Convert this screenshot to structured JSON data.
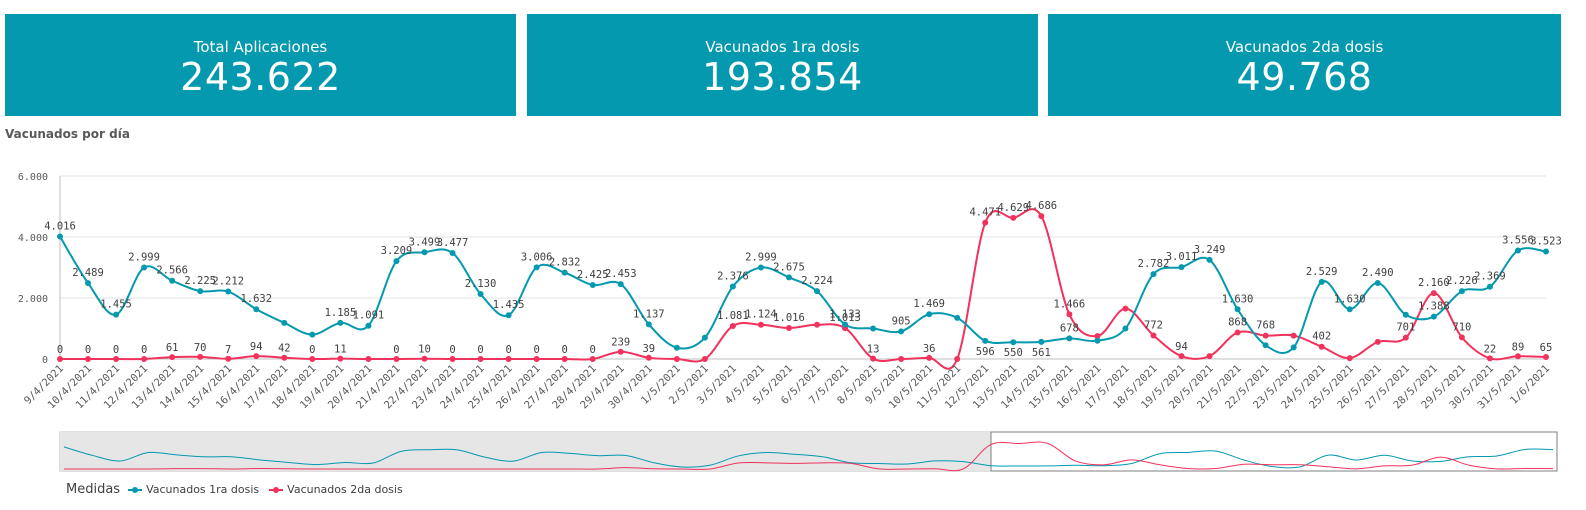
{
  "kpis": [
    {
      "label": "Total Aplicaciones",
      "value": "243.622"
    },
    {
      "label": "Vacunados 1ra dosis",
      "value": "193.854"
    },
    {
      "label": "Vacunados 2da dosis",
      "value": "49.768"
    }
  ],
  "chart_title": "Vacunados por día",
  "legend": {
    "title": "Medidas"
  },
  "colors": {
    "kpi_bg": "#0499ae",
    "series1": "#0499ae",
    "series2": "#f0325c"
  },
  "chart_data": {
    "type": "line",
    "title": "Vacunados por día",
    "ylim": [
      0,
      6000
    ],
    "yticks": [
      0,
      2000,
      4000,
      6000
    ],
    "ytick_labels": [
      "0",
      "2.000",
      "4.000",
      "6.000"
    ],
    "grid": true,
    "legend_position": "bottom-left",
    "x": [
      "9/4/2021",
      "10/4/2021",
      "11/4/2021",
      "12/4/2021",
      "13/4/2021",
      "14/4/2021",
      "15/4/2021",
      "16/4/2021",
      "17/4/2021",
      "18/4/2021",
      "19/4/2021",
      "20/4/2021",
      "21/4/2021",
      "22/4/2021",
      "23/4/2021",
      "24/4/2021",
      "25/4/2021",
      "26/4/2021",
      "27/4/2021",
      "28/4/2021",
      "29/4/2021",
      "30/4/2021",
      "1/5/2021",
      "2/5/2021",
      "3/5/2021",
      "4/5/2021",
      "5/5/2021",
      "6/5/2021",
      "7/5/2021",
      "8/5/2021",
      "9/5/2021",
      "10/5/2021",
      "11/5/2021",
      "12/5/2021",
      "13/5/2021",
      "14/5/2021",
      "15/5/2021",
      "16/5/2021",
      "17/5/2021",
      "18/5/2021",
      "19/5/2021",
      "20/5/2021",
      "21/5/2021",
      "22/5/2021",
      "23/5/2021",
      "24/5/2021",
      "25/5/2021",
      "26/5/2021",
      "27/5/2021",
      "28/5/2021",
      "29/5/2021",
      "30/5/2021",
      "31/5/2021",
      "1/6/2021"
    ],
    "series": [
      {
        "name": "Vacunados 1ra dosis",
        "values": [
          4016,
          2489,
          1455,
          2999,
          2566,
          2225,
          2212,
          1632,
          1185,
          800,
          1185,
          1091,
          3209,
          3499,
          3477,
          2130,
          1435,
          3006,
          2832,
          2425,
          2453,
          1137,
          370,
          700,
          2376,
          2999,
          2675,
          2224,
          1133,
          1000,
          905,
          1469,
          1350,
          596,
          550,
          561,
          678,
          600,
          1000,
          2782,
          3011,
          3249,
          1630,
          450,
          380,
          2529,
          1630,
          2490,
          1450,
          1388,
          2226,
          2369,
          3556,
          3523
        ],
        "labels": [
          "4.016",
          "2.489",
          "1.455",
          "2.999",
          "2.566",
          "2.225",
          "2.212",
          "1.632",
          null,
          null,
          "1.185",
          "1.091",
          "3.209",
          "3.499",
          "3.477",
          "2.130",
          "1.435",
          "3.006",
          "2.832",
          "2.425",
          "2.453",
          "1.137",
          null,
          null,
          "2.376",
          "2.999",
          "2.675",
          "2.224",
          "1.133",
          null,
          "905",
          "1.469",
          null,
          "596",
          "550",
          "561",
          "678",
          null,
          null,
          "2.782",
          "3.011",
          "3.249",
          "1.630",
          null,
          null,
          "2.529",
          "1.630",
          "2.490",
          null,
          "1.388",
          "2.226",
          "2.369",
          "3.556",
          "3.523"
        ]
      },
      {
        "name": "Vacunados 2da dosis",
        "values": [
          0,
          0,
          0,
          0,
          61,
          70,
          7,
          94,
          42,
          0,
          11,
          0,
          0,
          10,
          0,
          0,
          0,
          0,
          0,
          0,
          239,
          39,
          0,
          0,
          1081,
          1124,
          1016,
          1124,
          1013,
          13,
          0,
          36,
          0,
          4471,
          4629,
          4686,
          1466,
          750,
          1650,
          772,
          94,
          94,
          868,
          768,
          768,
          402,
          30,
          560,
          701,
          2160,
          710,
          22,
          89,
          65
        ],
        "labels": [
          "0",
          "0",
          "0",
          "0",
          "61",
          "70",
          "7",
          "94",
          "42",
          "0",
          "11",
          null,
          "0",
          "10",
          "0",
          "0",
          "0",
          "0",
          "0",
          "0",
          "239",
          "39",
          null,
          null,
          "1.081",
          "1.124",
          "1.016",
          null,
          "1.013",
          "13",
          null,
          "36",
          null,
          "4.471",
          "4.629",
          "4.686",
          "1.466",
          null,
          null,
          "772",
          "94",
          null,
          "868",
          "768",
          null,
          "402",
          null,
          null,
          "701",
          "2.160",
          "710",
          "22",
          "89",
          "65"
        ]
      }
    ]
  }
}
